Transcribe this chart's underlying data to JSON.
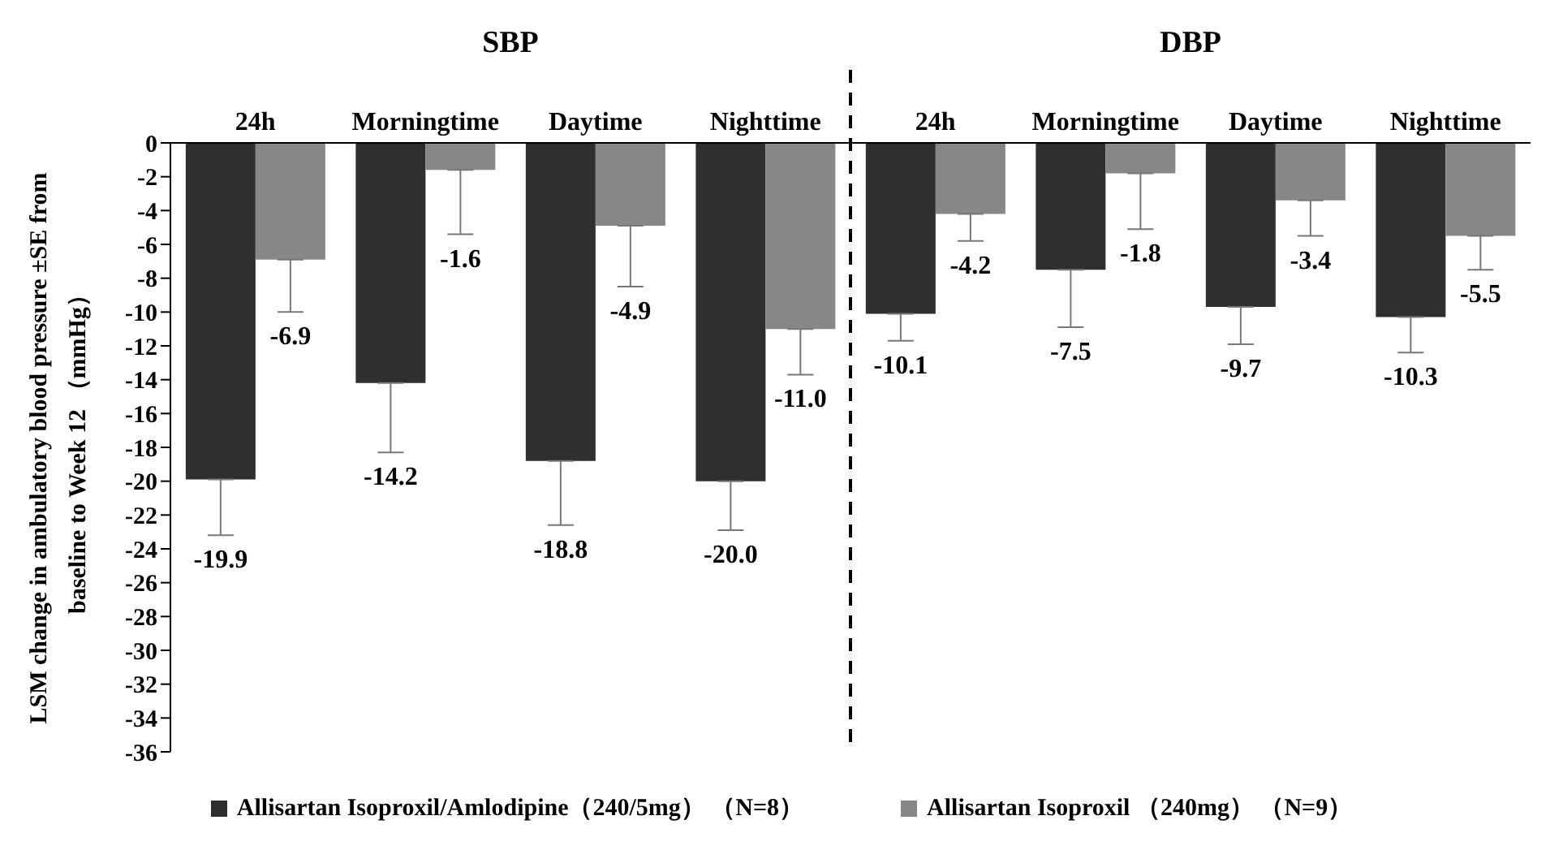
{
  "chart_data": {
    "type": "bar",
    "ylabel": "LSM change in ambulatory blood pressure ±SE from baseline to Week 12 （mmHg）",
    "annotations": [
      "SBP",
      "DBP"
    ],
    "categories": [
      "24h",
      "Morningtime",
      "Daytime",
      "Nighttime",
      "24h",
      "Morningtime",
      "Daytime",
      "Nighttime"
    ],
    "series": [
      {
        "name": "Allisartan Isoproxil/Amlodipine（240/5mg） （N=8）",
        "color": "#2f2f2f",
        "values": [
          -19.9,
          -14.2,
          -18.8,
          -20.0,
          -10.1,
          -7.5,
          -9.7,
          -10.3
        ],
        "value_labels": [
          "-19.9",
          "-14.2",
          "-18.8",
          "-20.0",
          "-10.1",
          "-7.5",
          "-9.7",
          "-10.3"
        ],
        "errors": [
          [
            -23.2,
            -19.9
          ],
          [
            -18.3,
            -14.2
          ],
          [
            -22.6,
            -18.8
          ],
          [
            -22.9,
            -20.0
          ],
          [
            -11.7,
            -10.1
          ],
          [
            -10.9,
            -7.5
          ],
          [
            -11.9,
            -9.7
          ],
          [
            -12.4,
            -10.3
          ]
        ]
      },
      {
        "name": "Allisartan Isoproxil （240mg） （N=9）",
        "color": "#878787",
        "values": [
          -6.9,
          -1.6,
          -4.9,
          -11.0,
          -4.2,
          -1.8,
          -3.4,
          -5.5
        ],
        "value_labels": [
          "-6.9",
          "-1.6",
          "-4.9",
          "-11.0",
          "-4.2",
          "-1.8",
          "-3.4",
          "-5.5"
        ],
        "errors": [
          [
            -10.0,
            -6.9
          ],
          [
            -5.4,
            -1.6
          ],
          [
            -8.5,
            -4.9
          ],
          [
            -13.7,
            -11.0
          ],
          [
            -5.8,
            -4.2
          ],
          [
            -5.1,
            -1.8
          ],
          [
            -5.5,
            -3.4
          ],
          [
            -7.5,
            -5.5
          ]
        ]
      }
    ],
    "ylim": [
      -36,
      0
    ],
    "yticks": [
      0,
      -2,
      -4,
      -6,
      -8,
      -10,
      -12,
      -14,
      -16,
      -18,
      -20,
      -22,
      -24,
      -26,
      -28,
      -30,
      -32,
      -34,
      -36
    ],
    "grid": false,
    "legend": "bottom"
  }
}
